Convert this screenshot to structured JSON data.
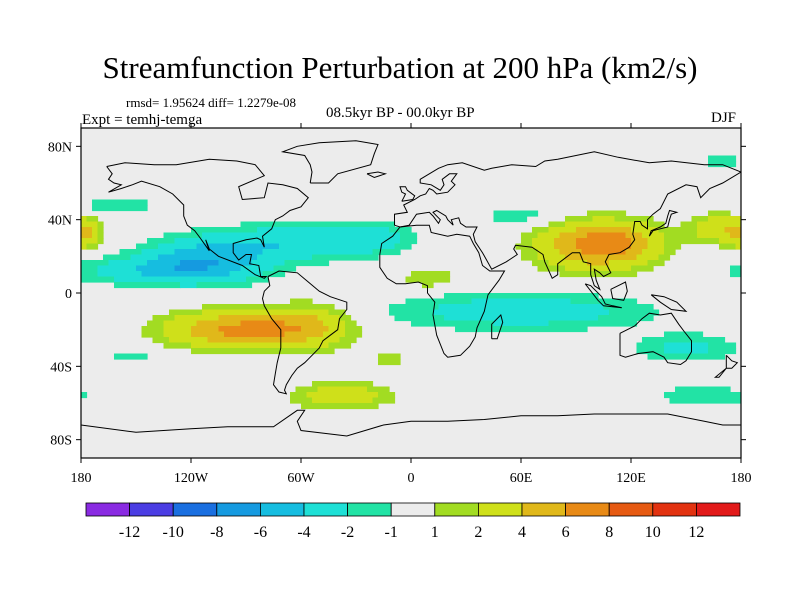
{
  "header": {
    "title": "Streamfunction Perturbation at 200 hPa (km2/s)",
    "stats": "rmsd= 1.95624 diff= 1.2279e-08",
    "experiment": "Expt = temhj-temga",
    "period": "08.5kyr BP - 00.0kyr BP",
    "season": "DJF"
  },
  "chart_data": {
    "type": "heatmap",
    "title": "Streamfunction Perturbation at 200 hPa (km2/s)",
    "projection": "cylindrical equidistant",
    "xlim": [
      -180,
      180
    ],
    "ylim": [
      -90,
      90
    ],
    "x_ticks": [
      {
        "value": -180,
        "label": "180"
      },
      {
        "value": -120,
        "label": "120W"
      },
      {
        "value": -60,
        "label": "60W"
      },
      {
        "value": 0,
        "label": "0"
      },
      {
        "value": 60,
        "label": "60E"
      },
      {
        "value": 120,
        "label": "120E"
      },
      {
        "value": 180,
        "label": "180"
      }
    ],
    "y_ticks": [
      {
        "value": 80,
        "label": "80N"
      },
      {
        "value": 40,
        "label": "40N"
      },
      {
        "value": 0,
        "label": "0"
      },
      {
        "value": -40,
        "label": "40S"
      },
      {
        "value": -80,
        "label": "80S"
      }
    ],
    "colorbar": {
      "levels": [
        -12,
        -10,
        -8,
        -6,
        -4,
        -2,
        -1,
        1,
        2,
        4,
        6,
        8,
        10,
        12
      ],
      "colors": [
        "#8a2be2",
        "#4b3de3",
        "#1a6fe0",
        "#159ae0",
        "#16bde0",
        "#1ee0d6",
        "#22e3a5",
        "#ececec",
        "#a2dc22",
        "#cfe01a",
        "#e0b81a",
        "#e88a16",
        "#e65a12",
        "#e23210",
        "#e21a1a"
      ],
      "labels": [
        "-12",
        "-10",
        "-8",
        "-6",
        "-4",
        "-2",
        "-1",
        "1",
        "2",
        "4",
        "6",
        "8",
        "10",
        "12"
      ]
    },
    "features": [
      {
        "lon": -112,
        "lat": 18,
        "slon": 34,
        "slat": 12,
        "amp": -5.2
      },
      {
        "lon": -145,
        "lat": 12,
        "slon": 40,
        "slat": 7,
        "amp": -3.0
      },
      {
        "lon": -60,
        "lat": 28,
        "slon": 40,
        "slat": 10,
        "amp": -3.6
      },
      {
        "lon": -20,
        "lat": 30,
        "slon": 22,
        "slat": 8,
        "amp": -2.4
      },
      {
        "lon": 60,
        "lat": 42,
        "slon": 24,
        "slat": 6,
        "amp": -1.6
      },
      {
        "lon": -160,
        "lat": 48,
        "slon": 22,
        "slat": 5,
        "amp": -1.8
      },
      {
        "lon": 100,
        "lat": 26,
        "slon": 30,
        "slat": 13,
        "amp": 6.8
      },
      {
        "lon": 120,
        "lat": 28,
        "slon": 18,
        "slat": 10,
        "amp": 2.0
      },
      {
        "lon": -95,
        "lat": -20,
        "slon": 38,
        "slat": 10,
        "amp": 6.5
      },
      {
        "lon": -55,
        "lat": -18,
        "slon": 24,
        "slat": 12,
        "amp": 3.5
      },
      {
        "lon": -38,
        "lat": -56,
        "slon": 26,
        "slat": 7,
        "amp": 3.5
      },
      {
        "lon": 10,
        "lat": 8,
        "slon": 18,
        "slat": 6,
        "amp": 1.8
      },
      {
        "lon": 60,
        "lat": -10,
        "slon": 70,
        "slat": 10,
        "amp": -3.2
      },
      {
        "lon": 150,
        "lat": -30,
        "slon": 28,
        "slat": 8,
        "amp": -2.4
      },
      {
        "lon": 168,
        "lat": 35,
        "slon": 16,
        "slat": 8,
        "amp": 3.6
      },
      {
        "lon": -178,
        "lat": 32,
        "slon": 8,
        "slat": 8,
        "amp": 3.6
      },
      {
        "lon": 160,
        "lat": -56,
        "slon": 30,
        "slat": 6,
        "amp": -1.8
      },
      {
        "lon": -12,
        "lat": -36,
        "slon": 10,
        "slat": 4,
        "amp": 1.4
      },
      {
        "lon": 170,
        "lat": 72,
        "slon": 14,
        "slat": 6,
        "amp": -1.4
      },
      {
        "lon": -150,
        "lat": -35,
        "slon": 20,
        "slat": 4,
        "amp": -1.3
      },
      {
        "lon": 160,
        "lat": -38,
        "slon": 8,
        "slat": 3,
        "amp": 1.2
      }
    ]
  }
}
